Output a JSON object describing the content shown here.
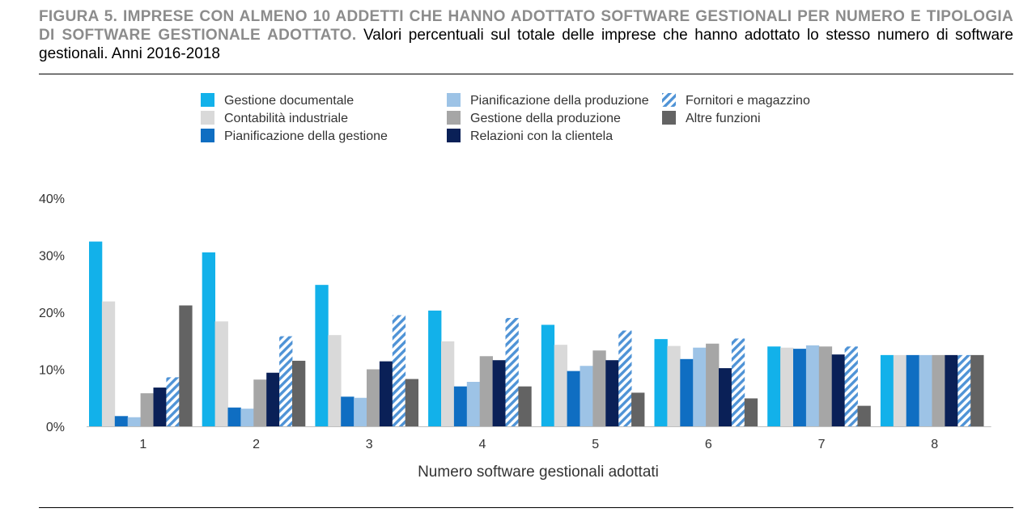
{
  "figure": {
    "title_lead": "FIGURA 5. IMPRESE CON ALMENO 10 ADDETTI CHE HANNO ADOTTATO SOFTWARE GESTIONALI PER NUMERO E TIPOLOGIA DI SOFTWARE GESTIONALE ADOTTATO.",
    "title_desc": "Valori percentuali sul totale delle imprese che hanno adottato lo stesso numero di software gestionali. Anni 2016-2018"
  },
  "chart_data": {
    "type": "bar",
    "xlabel": "Numero software gestionali adottati",
    "ylabel": "",
    "ylim": [
      0,
      40
    ],
    "yticks": [
      "0%",
      "10%",
      "20%",
      "30%",
      "40%"
    ],
    "grid": false,
    "legend_position": "top",
    "categories": [
      "1",
      "2",
      "3",
      "4",
      "5",
      "6",
      "7",
      "8"
    ],
    "series": [
      {
        "name": "Gestione documentale",
        "color": "#12b1ea",
        "pattern": "solid",
        "values": [
          32.4,
          30.5,
          24.8,
          20.3,
          17.8,
          15.3,
          14.0,
          12.5
        ]
      },
      {
        "name": "Contabilità industriale",
        "color": "#d9d9d9",
        "pattern": "solid",
        "values": [
          21.9,
          18.4,
          16.0,
          14.9,
          14.3,
          14.1,
          13.8,
          12.5
        ]
      },
      {
        "name": "Pianificazione della gestione",
        "color": "#0f6ec2",
        "pattern": "solid",
        "values": [
          1.8,
          3.3,
          5.2,
          7.0,
          9.7,
          11.8,
          13.6,
          12.5
        ]
      },
      {
        "name": "Pianificazione della produzione",
        "color": "#9dc3e6",
        "pattern": "solid",
        "values": [
          1.6,
          3.1,
          5.0,
          7.8,
          10.6,
          13.8,
          14.2,
          12.5
        ]
      },
      {
        "name": "Gestione della produzione",
        "color": "#a6a6a6",
        "pattern": "solid",
        "values": [
          5.8,
          8.2,
          10.0,
          12.3,
          13.3,
          14.5,
          14.0,
          12.5
        ]
      },
      {
        "name": "Relazioni con la clientela",
        "color": "#0a2057",
        "pattern": "solid",
        "values": [
          6.8,
          9.4,
          11.4,
          11.6,
          11.6,
          10.2,
          12.6,
          12.5
        ]
      },
      {
        "name": "Fornitori e magazzino",
        "color": "#4f93d6",
        "pattern": "hatch",
        "values": [
          8.6,
          15.8,
          19.5,
          19.0,
          16.8,
          15.4,
          14.0,
          12.5
        ]
      },
      {
        "name": "Altre funzioni",
        "color": "#636363",
        "pattern": "solid",
        "values": [
          21.2,
          11.5,
          8.3,
          7.0,
          5.9,
          4.9,
          3.6,
          12.5
        ]
      }
    ]
  }
}
